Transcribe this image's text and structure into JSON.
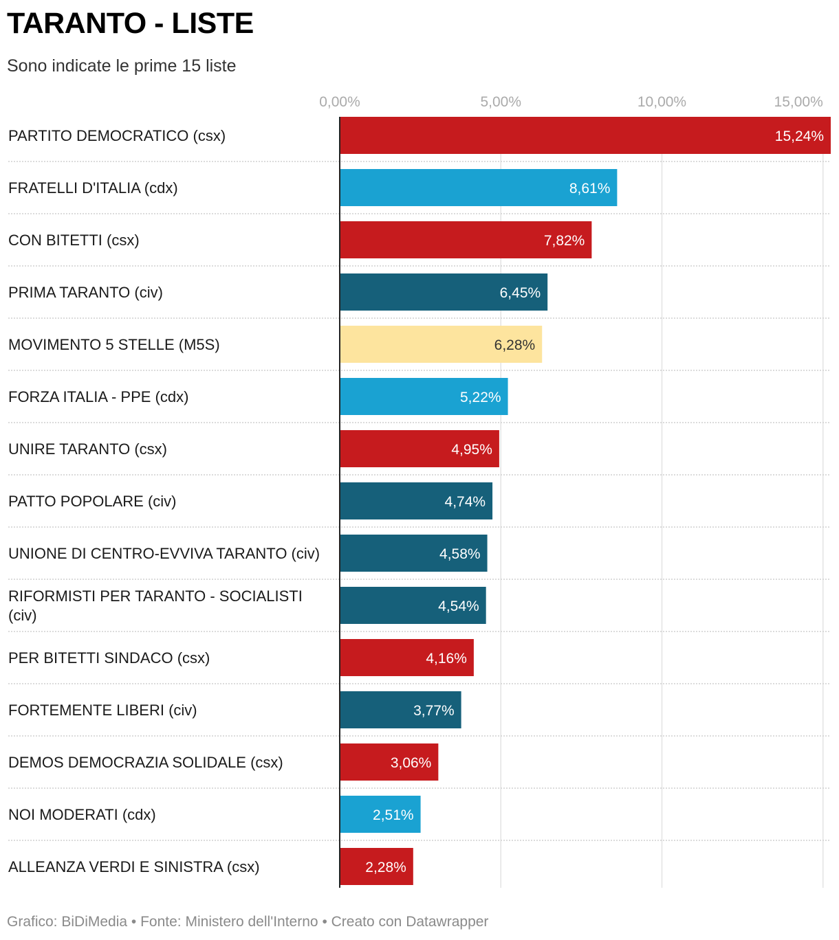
{
  "title": "TARANTO - LISTE",
  "subtitle": "Sono indicate le prime 15 liste",
  "footer": {
    "credit": "Grafico: BiDiMedia",
    "separator": "•",
    "source": "Fonte: Ministero dell'Interno",
    "tool": "Creato con Datawrapper"
  },
  "colors": {
    "csx": "#c61b1e",
    "cdx": "#1aa2d2",
    "civ": "#16607a",
    "M5S": "#fde49e",
    "label_light": "#ffffff",
    "label_dark": "#333333",
    "tick": "#aaaaaa",
    "category_text": "#1a1a1a"
  },
  "chart_data": {
    "type": "bar",
    "orientation": "horizontal",
    "xlim": [
      0,
      15.24
    ],
    "ticks": [
      0,
      5,
      10,
      15
    ],
    "tick_labels": [
      "0,00%",
      "5,00%",
      "10,00%",
      "15,00%"
    ],
    "categories": [
      [
        "PARTITO DEMOCRATICO (csx)"
      ],
      [
        "FRATELLI D'ITALIA (cdx)"
      ],
      [
        "CON BITETTI (csx)"
      ],
      [
        "PRIMA TARANTO (civ)"
      ],
      [
        "MOVIMENTO 5 STELLE (M5S)"
      ],
      [
        "FORZA ITALIA - PPE (cdx)"
      ],
      [
        "UNIRE TARANTO (csx)"
      ],
      [
        "PATTO POPOLARE (civ)"
      ],
      [
        "UNIONE DI CENTRO-EVVIVA TARANTO (civ)"
      ],
      [
        "RIFORMISTI PER TARANTO - SOCIALISTI",
        "(civ)"
      ],
      [
        "PER BITETTI SINDACO (csx)"
      ],
      [
        "FORTEMENTE LIBERI (civ)"
      ],
      [
        "DEMOS DEMOCRAZIA SOLIDALE (csx)"
      ],
      [
        "NOI MODERATI (cdx)"
      ],
      [
        "ALLEANZA VERDI E SINISTRA (csx)"
      ]
    ],
    "values": [
      15.24,
      8.61,
      7.82,
      6.45,
      6.28,
      5.22,
      4.95,
      4.74,
      4.58,
      4.54,
      4.16,
      3.77,
      3.06,
      2.51,
      2.28
    ],
    "value_labels": [
      "15,24%",
      "8,61%",
      "7,82%",
      "6,45%",
      "6,28%",
      "5,22%",
      "4,95%",
      "4,74%",
      "4,58%",
      "4,54%",
      "4,16%",
      "3,77%",
      "3,06%",
      "2,51%",
      "2,28%"
    ],
    "groups": [
      "csx",
      "cdx",
      "csx",
      "civ",
      "M5S",
      "cdx",
      "csx",
      "civ",
      "civ",
      "civ",
      "csx",
      "civ",
      "csx",
      "cdx",
      "csx"
    ]
  }
}
